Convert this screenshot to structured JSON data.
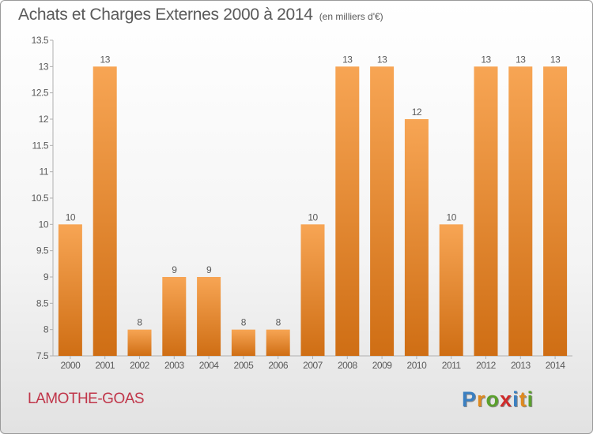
{
  "header": {
    "title": "Achats et Charges Externes 2000 à 2014",
    "subtitle": "(en milliers d'€)"
  },
  "footer": {
    "location": "LAMOTHE-GOAS",
    "brand": [
      "P",
      "r",
      "o",
      "x",
      "i",
      "t",
      "i"
    ],
    "brand_colors": [
      "#3a7fc1",
      "#e08a1e",
      "#5aa02c",
      "#d02a2a",
      "#3a7fc1",
      "#e08a1e",
      "#5aa02c"
    ]
  },
  "colors": {
    "bar_top": "#f7a554",
    "bar_bottom": "#cf6e14",
    "text": "#5a5a5a"
  },
  "chart_data": {
    "type": "bar",
    "categories": [
      "2000",
      "2001",
      "2002",
      "2003",
      "2004",
      "2005",
      "2006",
      "2007",
      "2008",
      "2009",
      "2010",
      "2011",
      "2012",
      "2013",
      "2014"
    ],
    "values": [
      10,
      13,
      8,
      9,
      9,
      8,
      8,
      10,
      13,
      13,
      12,
      10,
      13,
      13,
      13
    ],
    "data_labels": [
      "10",
      "13",
      "8",
      "9",
      "9",
      "8",
      "8",
      "10",
      "13",
      "13",
      "12",
      "10",
      "13",
      "13",
      "13"
    ],
    "ylim": [
      7.5,
      13.5
    ],
    "yticks": [
      7.5,
      8,
      8.5,
      9,
      9.5,
      10,
      10.5,
      11,
      11.5,
      12,
      12.5,
      13,
      13.5
    ],
    "ytick_labels": [
      "7.5",
      "8",
      "8.5",
      "9",
      "9.5",
      "10",
      "10.5",
      "11",
      "11.5",
      "12",
      "12.5",
      "13",
      "13.5"
    ],
    "grid": false
  }
}
